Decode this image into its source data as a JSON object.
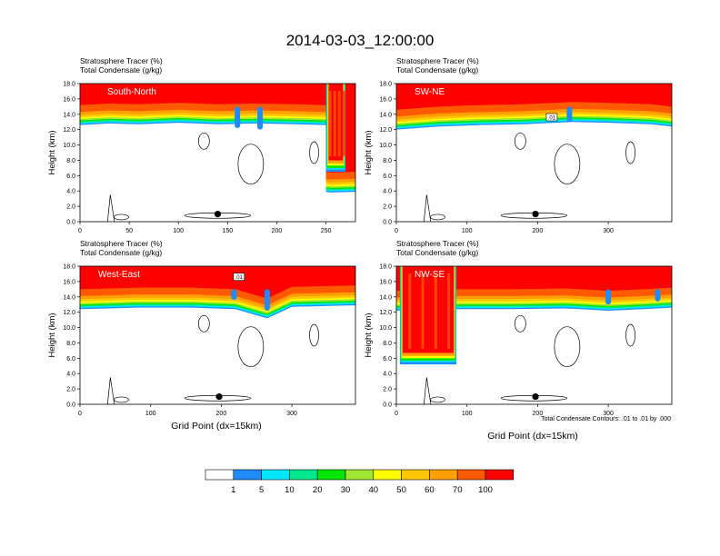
{
  "figure_title": "2014-03-03_12:00:00",
  "panel_titles": [
    "Stratosphere Tracer   (%)",
    "Total Condensate   (g/kg)"
  ],
  "ylabel": "Height (km)",
  "xlabel": "Grid Point (dx=15km)",
  "contour_note": "Total Condensate Contours: .01 to .01 by .000",
  "contour_label": ".01",
  "colorbar": {
    "levels": [
      "1",
      "5",
      "10",
      "20",
      "30",
      "40",
      "50",
      "60",
      "70",
      "100"
    ],
    "colors": [
      "#ffffff",
      "#1e8cff",
      "#00e6ff",
      "#00e68c",
      "#00e600",
      "#a0e632",
      "#ffff00",
      "#ffc800",
      "#ffa000",
      "#ff5a00",
      "#ff0000"
    ]
  },
  "chart_data": [
    {
      "type": "heatmap",
      "name": "South-North",
      "xlim": [
        0,
        280
      ],
      "ylim": [
        0,
        18
      ],
      "xticks": [
        "0",
        "50",
        "100",
        "150",
        "200",
        "250"
      ],
      "yticks": [
        "0.0",
        "2.0",
        "4.0",
        "6.0",
        "8.0",
        "10.0",
        "12.0",
        "14.0",
        "16.0",
        "18.0"
      ],
      "tracer_top_km": [
        [
          0,
          15.2
        ],
        [
          30,
          15.4
        ],
        [
          60,
          15.3
        ],
        [
          100,
          15.5
        ],
        [
          140,
          15.3
        ],
        [
          180,
          15.4
        ],
        [
          220,
          15.3
        ],
        [
          250,
          15.2
        ],
        [
          250,
          6.5
        ],
        [
          255,
          6.4
        ],
        [
          280,
          6.5
        ]
      ],
      "deep_columns": [
        [
          250,
          270
        ]
      ],
      "blue_dips": [
        [
          160,
          12.2
        ],
        [
          183,
          12.0
        ]
      ],
      "marker": {
        "x": 140,
        "y": 1.0
      }
    },
    {
      "type": "heatmap",
      "name": "SW-NE",
      "xlim": [
        0,
        390
      ],
      "ylim": [
        0,
        18
      ],
      "xticks": [
        "0",
        "100",
        "200",
        "300"
      ],
      "yticks": [
        "0.0",
        "2.0",
        "4.0",
        "6.0",
        "8.0",
        "10.0",
        "12.0",
        "14.0",
        "16.0",
        "18.0"
      ],
      "tracer_top_km": [
        [
          0,
          14.6
        ],
        [
          60,
          15.0
        ],
        [
          120,
          15.2
        ],
        [
          180,
          15.3
        ],
        [
          250,
          15.6
        ],
        [
          300,
          15.5
        ],
        [
          360,
          15.3
        ],
        [
          390,
          15.0
        ]
      ],
      "deep_columns": [],
      "blue_dips": [
        [
          245,
          13.0
        ]
      ],
      "marker": {
        "x": 197,
        "y": 1.0
      }
    },
    {
      "type": "heatmap",
      "name": "West-East",
      "xlim": [
        0,
        390
      ],
      "ylim": [
        0,
        18
      ],
      "xticks": [
        "0",
        "100",
        "200",
        "300"
      ],
      "yticks": [
        "0.0",
        "2.0",
        "4.0",
        "6.0",
        "8.0",
        "10.0",
        "12.0",
        "14.0",
        "16.0",
        "18.0"
      ],
      "tracer_top_km": [
        [
          0,
          15.0
        ],
        [
          80,
          15.2
        ],
        [
          160,
          15.2
        ],
        [
          220,
          15.0
        ],
        [
          265,
          13.8
        ],
        [
          300,
          15.3
        ],
        [
          390,
          15.5
        ]
      ],
      "deep_columns": [],
      "blue_dips": [
        [
          218,
          13.6
        ],
        [
          265,
          12.2
        ]
      ],
      "marker": {
        "x": 197,
        "y": 1.0
      }
    },
    {
      "type": "heatmap",
      "name": "NW-SE",
      "xlim": [
        0,
        390
      ],
      "ylim": [
        0,
        18
      ],
      "xticks": [
        "0",
        "100",
        "200",
        "300"
      ],
      "yticks": [
        "0.0",
        "2.0",
        "4.0",
        "6.0",
        "8.0",
        "10.0",
        "12.0",
        "14.0",
        "16.0",
        "18.0"
      ],
      "tracer_top_km": [
        [
          0,
          14.8
        ],
        [
          80,
          15.0
        ],
        [
          160,
          15.0
        ],
        [
          240,
          15.1
        ],
        [
          300,
          14.8
        ],
        [
          350,
          15.0
        ],
        [
          390,
          15.2
        ]
      ],
      "deep_columns": [
        [
          5,
          85
        ]
      ],
      "blue_dips": [
        [
          300,
          13.0
        ],
        [
          370,
          13.4
        ]
      ],
      "marker": {
        "x": 197,
        "y": 1.0
      }
    }
  ]
}
